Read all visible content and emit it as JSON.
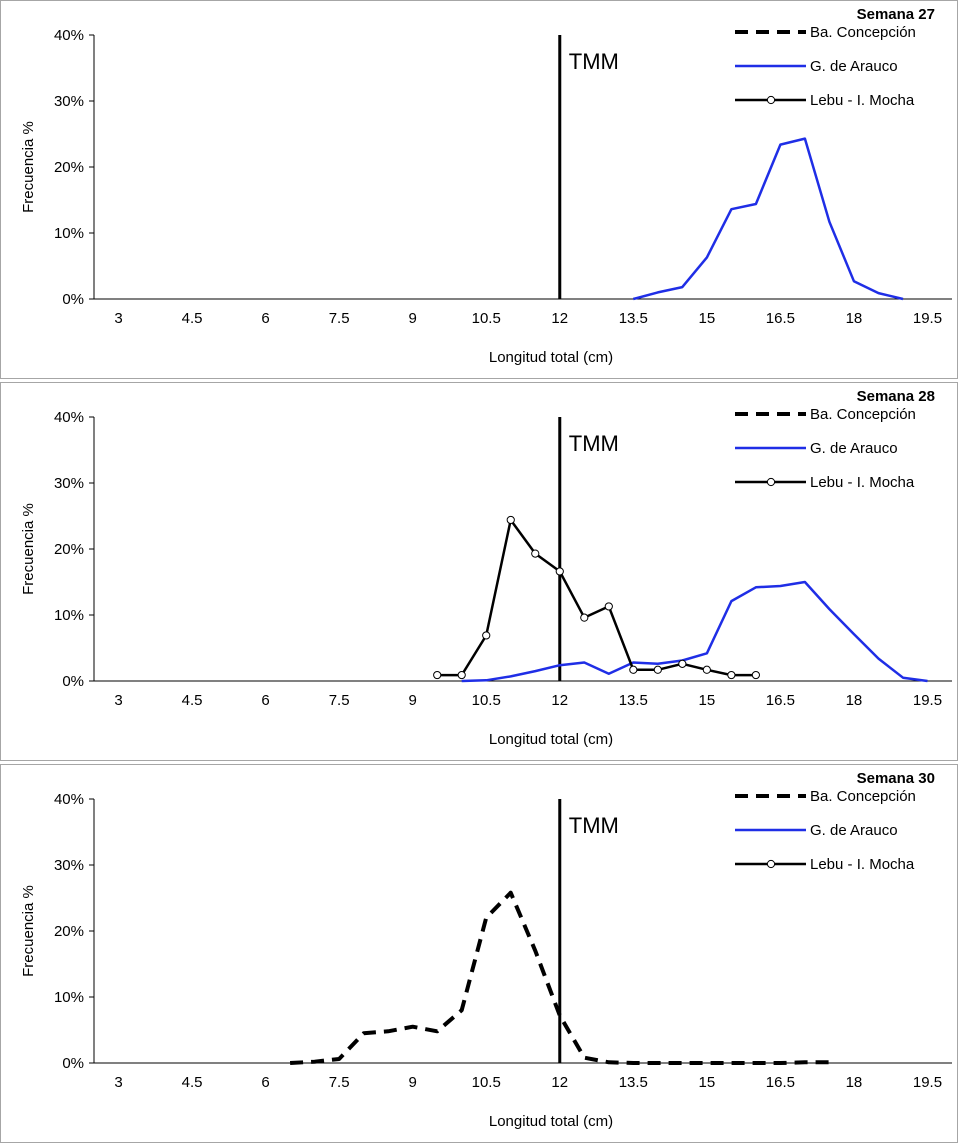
{
  "legend_labels": [
    "Ba. Concepción",
    "G. de Arauco",
    "Lebu - I. Mocha"
  ],
  "series_colors": {
    "Ba. Concepción": "#000000",
    "G. de Arauco": "#1f2ee6",
    "Lebu - I. Mocha": "#000000"
  },
  "xlabel": "Longitud total (cm)",
  "ylabel": "Frecuencia %",
  "tmm_label": "TMM",
  "chart_data": [
    {
      "type": "line",
      "week_label": "Semana 27",
      "xlabel": "Longitud total (cm)",
      "ylabel": "Frecuencia %",
      "x_ticks": [
        3,
        4.5,
        6,
        7.5,
        9,
        10.5,
        12,
        13.5,
        15,
        16.5,
        18,
        19.5
      ],
      "x_tick_labels": [
        "3",
        "4.5",
        "6",
        "7.5",
        "9",
        "10.5",
        "12",
        "13.5",
        "15",
        "16.5",
        "18",
        "19.5"
      ],
      "y_ticks": [
        0,
        10,
        20,
        30,
        40
      ],
      "y_tick_labels": [
        "0%",
        "10%",
        "20%",
        "30%",
        "40%"
      ],
      "xlim": [
        2.5,
        20
      ],
      "ylim": [
        0,
        40
      ],
      "tmm": 12,
      "legend": [
        "Ba. Concepción",
        "G. de Arauco",
        "Lebu - I. Mocha"
      ],
      "series": [
        {
          "name": "G. de Arauco",
          "style": "solid",
          "x": [
            13.5,
            14,
            14.5,
            15,
            15.5,
            16,
            16.5,
            17,
            17.5,
            18,
            18.5,
            19
          ],
          "y": [
            0,
            1,
            1.8,
            6.3,
            13.6,
            14.4,
            23.4,
            24.3,
            11.7,
            2.7,
            0.9,
            0
          ]
        }
      ]
    },
    {
      "type": "line",
      "week_label": "Semana 28",
      "xlabel": "Longitud total (cm)",
      "ylabel": "Frecuencia %",
      "x_ticks": [
        3,
        4.5,
        6,
        7.5,
        9,
        10.5,
        12,
        13.5,
        15,
        16.5,
        18,
        19.5
      ],
      "x_tick_labels": [
        "3",
        "4.5",
        "6",
        "7.5",
        "9",
        "10.5",
        "12",
        "13.5",
        "15",
        "16.5",
        "18",
        "19.5"
      ],
      "y_ticks": [
        0,
        10,
        20,
        30,
        40
      ],
      "y_tick_labels": [
        "0%",
        "10%",
        "20%",
        "30%",
        "40%"
      ],
      "xlim": [
        2.5,
        20
      ],
      "ylim": [
        0,
        40
      ],
      "tmm": 12,
      "legend": [
        "Ba. Concepción",
        "G. de Arauco",
        "Lebu - I. Mocha"
      ],
      "series": [
        {
          "name": "G. de Arauco",
          "style": "solid",
          "x": [
            10,
            10.5,
            11,
            11.5,
            12,
            12.5,
            13,
            13.5,
            14,
            14.5,
            15,
            15.5,
            16,
            16.5,
            17,
            17.5,
            18,
            18.5,
            19,
            19.5
          ],
          "y": [
            0,
            0.1,
            0.7,
            1.5,
            2.4,
            2.8,
            1.1,
            2.8,
            2.6,
            3.1,
            4.2,
            12.1,
            14.2,
            14.4,
            15,
            10.9,
            7.1,
            3.4,
            0.5,
            0
          ]
        },
        {
          "name": "Lebu - I. Mocha",
          "style": "markers",
          "x": [
            9.5,
            10,
            10.5,
            11,
            11.5,
            12,
            12.5,
            13,
            13.5,
            14,
            14.5,
            15,
            15.5,
            16
          ],
          "y": [
            0.9,
            0.9,
            6.9,
            24.4,
            19.3,
            16.6,
            9.6,
            11.3,
            1.7,
            1.7,
            2.6,
            1.7,
            0.9,
            0.9
          ]
        }
      ]
    },
    {
      "type": "line",
      "week_label": "Semana 30",
      "xlabel": "Longitud total (cm)",
      "ylabel": "Frecuencia %",
      "x_ticks": [
        3,
        4.5,
        6,
        7.5,
        9,
        10.5,
        12,
        13.5,
        15,
        16.5,
        18,
        19.5
      ],
      "x_tick_labels": [
        "3",
        "4.5",
        "6",
        "7.5",
        "9",
        "10.5",
        "12",
        "13.5",
        "15",
        "16.5",
        "18",
        "19.5"
      ],
      "y_ticks": [
        0,
        10,
        20,
        30,
        40
      ],
      "y_tick_labels": [
        "0%",
        "10%",
        "20%",
        "30%",
        "40%"
      ],
      "xlim": [
        2.5,
        20
      ],
      "ylim": [
        0,
        40
      ],
      "tmm": 12,
      "legend": [
        "Ba. Concepción",
        "G. de Arauco",
        "Lebu - I. Mocha"
      ],
      "series": [
        {
          "name": "Ba. Concepción",
          "style": "dashed",
          "x": [
            6.5,
            7,
            7.5,
            8,
            8.5,
            9,
            9.5,
            10,
            10.5,
            11,
            11.5,
            12,
            12.5,
            13,
            13.5,
            14,
            14.5,
            15,
            15.5,
            16,
            16.5,
            17,
            17.5
          ],
          "y": [
            0,
            0.2,
            0.6,
            4.5,
            4.8,
            5.5,
            4.8,
            8,
            22,
            25.8,
            17,
            7.2,
            0.8,
            0.1,
            0,
            0,
            0,
            0,
            0,
            0,
            0,
            0.1,
            0.1
          ]
        }
      ]
    }
  ]
}
